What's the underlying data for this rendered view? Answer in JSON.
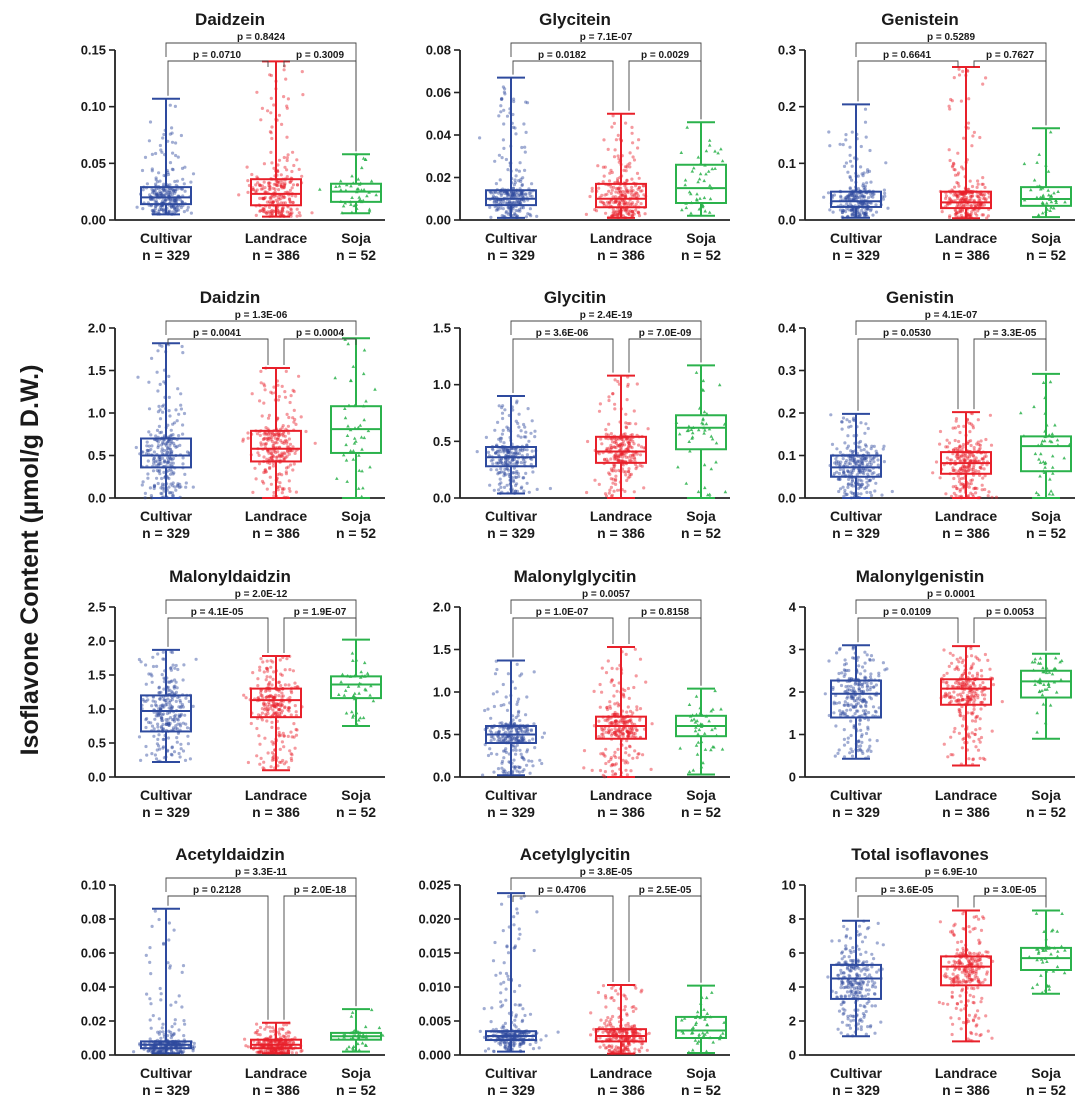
{
  "figure": {
    "ylabel": "Isoflavone Content (µmol/g D.W.)",
    "groups": [
      "Cultivar",
      "Landrace",
      "Soja"
    ],
    "group_counts": [
      "n = 329",
      "n = 386",
      "n = 52"
    ],
    "group_colors": [
      "#2e4a9e",
      "#e8202a",
      "#2bb24c"
    ]
  },
  "chart_data": [
    {
      "type": "box",
      "title": "Daidzein",
      "categories": [
        "Cultivar",
        "Landrace",
        "Soja"
      ],
      "ylim": [
        0,
        0.15
      ],
      "yticks": [
        "0.00",
        "0.05",
        "0.10",
        "0.15"
      ],
      "yticks_values": [
        0,
        0.05,
        0.1,
        0.15
      ],
      "series": [
        {
          "name": "Cultivar",
          "min": 0.005,
          "q1": 0.014,
          "median": 0.02,
          "q3": 0.029,
          "max": 0.107
        },
        {
          "name": "Landrace",
          "min": 0.003,
          "q1": 0.013,
          "median": 0.023,
          "q3": 0.036,
          "max": 0.14
        },
        {
          "name": "Soja",
          "min": 0.006,
          "q1": 0.016,
          "median": 0.025,
          "q3": 0.032,
          "max": 0.058
        }
      ],
      "pvalues": {
        "c_l": "p = 0.0710",
        "l_s": "p = 0.3009",
        "c_s": "p = 0.8424"
      }
    },
    {
      "type": "box",
      "title": "Glycitein",
      "categories": [
        "Cultivar",
        "Landrace",
        "Soja"
      ],
      "ylim": [
        0,
        0.08
      ],
      "yticks": [
        "0.00",
        "0.02",
        "0.04",
        "0.06",
        "0.08"
      ],
      "yticks_values": [
        0,
        0.02,
        0.04,
        0.06,
        0.08
      ],
      "series": [
        {
          "name": "Cultivar",
          "min": 0.001,
          "q1": 0.007,
          "median": 0.01,
          "q3": 0.014,
          "max": 0.067
        },
        {
          "name": "Landrace",
          "min": 0.001,
          "q1": 0.006,
          "median": 0.01,
          "q3": 0.017,
          "max": 0.05
        },
        {
          "name": "Soja",
          "min": 0.002,
          "q1": 0.008,
          "median": 0.015,
          "q3": 0.026,
          "max": 0.046
        }
      ],
      "pvalues": {
        "c_l": "p = 0.0182",
        "l_s": "p = 0.0029",
        "c_s": "p = 7.1E-07"
      }
    },
    {
      "type": "box",
      "title": "Genistein",
      "categories": [
        "Cultivar",
        "Landrace",
        "Soja"
      ],
      "ylim": [
        0,
        0.3
      ],
      "yticks": [
        "0.0",
        "0.1",
        "0.2",
        "0.3"
      ],
      "yticks_values": [
        0,
        0.1,
        0.2,
        0.3
      ],
      "series": [
        {
          "name": "Cultivar",
          "min": 0.004,
          "q1": 0.023,
          "median": 0.033,
          "q3": 0.05,
          "max": 0.204
        },
        {
          "name": "Landrace",
          "min": 0.003,
          "q1": 0.021,
          "median": 0.031,
          "q3": 0.05,
          "max": 0.27
        },
        {
          "name": "Soja",
          "min": 0.005,
          "q1": 0.025,
          "median": 0.037,
          "q3": 0.058,
          "max": 0.162
        }
      ],
      "pvalues": {
        "c_l": "p = 0.6641",
        "l_s": "p = 0.7627",
        "c_s": "p = 0.5289"
      }
    },
    {
      "type": "box",
      "title": "Daidzin",
      "categories": [
        "Cultivar",
        "Landrace",
        "Soja"
      ],
      "ylim": [
        0,
        2.0
      ],
      "yticks": [
        "0.0",
        "0.5",
        "1.0",
        "1.5",
        "2.0"
      ],
      "yticks_values": [
        0,
        0.5,
        1.0,
        1.5,
        2.0
      ],
      "series": [
        {
          "name": "Cultivar",
          "min": 0.0,
          "q1": 0.36,
          "median": 0.5,
          "q3": 0.7,
          "max": 1.82
        },
        {
          "name": "Landrace",
          "min": 0.0,
          "q1": 0.43,
          "median": 0.58,
          "q3": 0.79,
          "max": 1.53
        },
        {
          "name": "Soja",
          "min": 0.0,
          "q1": 0.53,
          "median": 0.81,
          "q3": 1.08,
          "max": 1.88
        }
      ],
      "pvalues": {
        "c_l": "p = 0.0041",
        "l_s": "p = 0.0004",
        "c_s": "p = 1.3E-06"
      }
    },
    {
      "type": "box",
      "title": "Glycitin",
      "categories": [
        "Cultivar",
        "Landrace",
        "Soja"
      ],
      "ylim": [
        0,
        1.5
      ],
      "yticks": [
        "0.0",
        "0.5",
        "1.0",
        "1.5"
      ],
      "yticks_values": [
        0,
        0.5,
        1.0,
        1.5
      ],
      "series": [
        {
          "name": "Cultivar",
          "min": 0.04,
          "q1": 0.28,
          "median": 0.36,
          "q3": 0.45,
          "max": 0.9
        },
        {
          "name": "Landrace",
          "min": 0.0,
          "q1": 0.31,
          "median": 0.41,
          "q3": 0.54,
          "max": 1.08
        },
        {
          "name": "Soja",
          "min": 0.0,
          "q1": 0.43,
          "median": 0.62,
          "q3": 0.73,
          "max": 1.17
        }
      ],
      "pvalues": {
        "c_l": "p = 3.6E-06",
        "l_s": "p = 7.0E-09",
        "c_s": "p = 2.4E-19"
      }
    },
    {
      "type": "box",
      "title": "Genistin",
      "categories": [
        "Cultivar",
        "Landrace",
        "Soja"
      ],
      "ylim": [
        0,
        0.4
      ],
      "yticks": [
        "0.0",
        "0.1",
        "0.2",
        "0.3",
        "0.4"
      ],
      "yticks_values": [
        0,
        0.1,
        0.2,
        0.3,
        0.4
      ],
      "series": [
        {
          "name": "Cultivar",
          "min": 0.0,
          "q1": 0.05,
          "median": 0.072,
          "q3": 0.1,
          "max": 0.198
        },
        {
          "name": "Landrace",
          "min": 0.0,
          "q1": 0.057,
          "median": 0.082,
          "q3": 0.108,
          "max": 0.202
        },
        {
          "name": "Soja",
          "min": 0.0,
          "q1": 0.063,
          "median": 0.122,
          "q3": 0.145,
          "max": 0.292
        }
      ],
      "pvalues": {
        "c_l": "p = 0.0530",
        "l_s": "p = 3.3E-05",
        "c_s": "p = 4.1E-07"
      }
    },
    {
      "type": "box",
      "title": "Malonyldaidzin",
      "categories": [
        "Cultivar",
        "Landrace",
        "Soja"
      ],
      "ylim": [
        0,
        2.5
      ],
      "yticks": [
        "0.0",
        "0.5",
        "1.0",
        "1.5",
        "2.0",
        "2.5"
      ],
      "yticks_values": [
        0,
        0.5,
        1.0,
        1.5,
        2.0,
        2.5
      ],
      "series": [
        {
          "name": "Cultivar",
          "min": 0.22,
          "q1": 0.67,
          "median": 0.97,
          "q3": 1.2,
          "max": 1.87
        },
        {
          "name": "Landrace",
          "min": 0.1,
          "q1": 0.88,
          "median": 1.13,
          "q3": 1.3,
          "max": 1.78
        },
        {
          "name": "Soja",
          "min": 0.75,
          "q1": 1.16,
          "median": 1.36,
          "q3": 1.48,
          "max": 2.02
        }
      ],
      "pvalues": {
        "c_l": "p = 4.1E-05",
        "l_s": "p = 1.9E-07",
        "c_s": "p = 2.0E-12"
      }
    },
    {
      "type": "box",
      "title": "Malonylglycitin",
      "categories": [
        "Cultivar",
        "Landrace",
        "Soja"
      ],
      "ylim": [
        0,
        2.0
      ],
      "yticks": [
        "0.0",
        "0.5",
        "1.0",
        "1.5",
        "2.0"
      ],
      "yticks_values": [
        0,
        0.5,
        1.0,
        1.5,
        2.0
      ],
      "series": [
        {
          "name": "Cultivar",
          "min": 0.02,
          "q1": 0.4,
          "median": 0.5,
          "q3": 0.6,
          "max": 1.37
        },
        {
          "name": "Landrace",
          "min": 0.0,
          "q1": 0.45,
          "median": 0.6,
          "q3": 0.71,
          "max": 1.53
        },
        {
          "name": "Soja",
          "min": 0.03,
          "q1": 0.48,
          "median": 0.6,
          "q3": 0.72,
          "max": 1.04
        }
      ],
      "pvalues": {
        "c_l": "p = 1.0E-07",
        "l_s": "p = 0.8158",
        "c_s": "p = 0.0057"
      }
    },
    {
      "type": "box",
      "title": "Malonylgenistin",
      "categories": [
        "Cultivar",
        "Landrace",
        "Soja"
      ],
      "ylim": [
        0,
        4
      ],
      "yticks": [
        "0",
        "1",
        "2",
        "3",
        "4"
      ],
      "yticks_values": [
        0,
        1,
        2,
        3,
        4
      ],
      "series": [
        {
          "name": "Cultivar",
          "min": 0.43,
          "q1": 1.4,
          "median": 1.96,
          "q3": 2.27,
          "max": 3.1
        },
        {
          "name": "Landrace",
          "min": 0.27,
          "q1": 1.7,
          "median": 2.08,
          "q3": 2.3,
          "max": 3.08
        },
        {
          "name": "Soja",
          "min": 0.9,
          "q1": 1.87,
          "median": 2.25,
          "q3": 2.5,
          "max": 2.9
        }
      ],
      "pvalues": {
        "c_l": "p = 0.0109",
        "l_s": "p = 0.0053",
        "c_s": "p = 0.0001"
      }
    },
    {
      "type": "box",
      "title": "Acetyldaidzin",
      "categories": [
        "Cultivar",
        "Landrace",
        "Soja"
      ],
      "ylim": [
        0,
        0.1
      ],
      "yticks": [
        "0.00",
        "0.02",
        "0.04",
        "0.06",
        "0.08",
        "0.10"
      ],
      "yticks_values": [
        0,
        0.02,
        0.04,
        0.06,
        0.08,
        0.1
      ],
      "series": [
        {
          "name": "Cultivar",
          "min": 0.001,
          "q1": 0.004,
          "median": 0.006,
          "q3": 0.008,
          "max": 0.086
        },
        {
          "name": "Landrace",
          "min": 0.001,
          "q1": 0.004,
          "median": 0.006,
          "q3": 0.009,
          "max": 0.019
        },
        {
          "name": "Soja",
          "min": 0.002,
          "q1": 0.009,
          "median": 0.011,
          "q3": 0.013,
          "max": 0.027
        }
      ],
      "pvalues": {
        "c_l": "p = 0.2128",
        "l_s": "p = 2.0E-18",
        "c_s": "p = 3.3E-11"
      }
    },
    {
      "type": "box",
      "title": "Acetylglycitin",
      "categories": [
        "Cultivar",
        "Landrace",
        "Soja"
      ],
      "ylim": [
        0,
        0.025
      ],
      "yticks": [
        "0.000",
        "0.005",
        "0.010",
        "0.015",
        "0.020",
        "0.025"
      ],
      "yticks_values": [
        0,
        0.005,
        0.01,
        0.015,
        0.02,
        0.025
      ],
      "series": [
        {
          "name": "Cultivar",
          "min": 0.0005,
          "q1": 0.0022,
          "median": 0.0028,
          "q3": 0.0035,
          "max": 0.0238
        },
        {
          "name": "Landrace",
          "min": 0.0002,
          "q1": 0.002,
          "median": 0.0028,
          "q3": 0.0038,
          "max": 0.0103
        },
        {
          "name": "Soja",
          "min": 0.0003,
          "q1": 0.0025,
          "median": 0.0036,
          "q3": 0.0056,
          "max": 0.0102
        }
      ],
      "pvalues": {
        "c_l": "p = 0.4706",
        "l_s": "p = 2.5E-05",
        "c_s": "p = 3.8E-05"
      }
    },
    {
      "type": "box",
      "title": "Total isoflavones",
      "categories": [
        "Cultivar",
        "Landrace",
        "Soja"
      ],
      "ylim": [
        0,
        10
      ],
      "yticks": [
        "0",
        "2",
        "4",
        "6",
        "8",
        "10"
      ],
      "yticks_values": [
        0,
        2,
        4,
        6,
        8,
        10
      ],
      "series": [
        {
          "name": "Cultivar",
          "min": 1.1,
          "q1": 3.3,
          "median": 4.5,
          "q3": 5.3,
          "max": 7.9
        },
        {
          "name": "Landrace",
          "min": 0.8,
          "q1": 4.1,
          "median": 5.2,
          "q3": 5.8,
          "max": 8.5
        },
        {
          "name": "Soja",
          "min": 3.6,
          "q1": 5.0,
          "median": 5.7,
          "q3": 6.3,
          "max": 8.5
        }
      ],
      "pvalues": {
        "c_l": "p = 3.6E-05",
        "l_s": "p = 3.0E-05",
        "c_s": "p = 6.9E-10"
      }
    }
  ]
}
